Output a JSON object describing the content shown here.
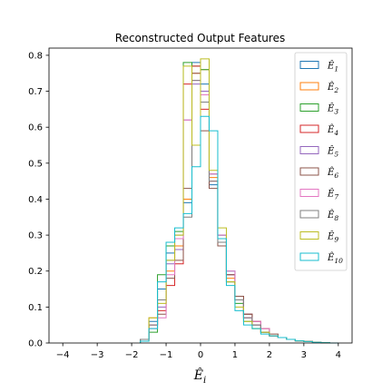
{
  "chart_data": {
    "type": "histogram-step",
    "title": "Reconstructed Output Features",
    "xlabel": "Ê_i",
    "ylabel": "",
    "xlim": [
      -4.4,
      4.4
    ],
    "ylim": [
      0,
      0.82
    ],
    "xticks": [
      -4,
      -3,
      -2,
      -1,
      0,
      1,
      2,
      3,
      4
    ],
    "yticks": [
      0.0,
      0.1,
      0.2,
      0.3,
      0.4,
      0.5,
      0.6,
      0.7,
      0.8
    ],
    "legend_position": "top-right",
    "grid": false,
    "bin_edges": [
      -1.75,
      -1.5,
      -1.25,
      -1.0,
      -0.75,
      -0.5,
      -0.25,
      0.0,
      0.25,
      0.5,
      0.75,
      1.0,
      1.25,
      1.5,
      1.75,
      2.0,
      2.25,
      2.5,
      2.75,
      3.0,
      3.25,
      3.5,
      3.75,
      4.0
    ],
    "series": [
      {
        "name": "Ê1",
        "sub": "1",
        "color": "#1f77b4",
        "values": [
          0.01,
          0.06,
          0.15,
          0.25,
          0.29,
          0.39,
          0.78,
          0.72,
          0.44,
          0.3,
          0.2,
          0.12,
          0.08,
          0.05,
          0.03,
          0.02,
          0.015,
          0.01,
          0.006,
          0.004,
          0.002,
          0.001,
          0.0
        ]
      },
      {
        "name": "Ê2",
        "sub": "2",
        "color": "#ff7f0e",
        "values": [
          0.01,
          0.07,
          0.12,
          0.2,
          0.27,
          0.4,
          0.75,
          0.76,
          0.46,
          0.29,
          0.18,
          0.12,
          0.07,
          0.05,
          0.03,
          0.02,
          0.015,
          0.01,
          0.006,
          0.004,
          0.002,
          0.001,
          0.0
        ]
      },
      {
        "name": "Ê3",
        "sub": "3",
        "color": "#2ca02c",
        "values": [
          0.005,
          0.03,
          0.19,
          0.27,
          0.31,
          0.78,
          0.77,
          0.76,
          0.47,
          0.3,
          0.17,
          0.11,
          0.06,
          0.04,
          0.03,
          0.02,
          0.015,
          0.01,
          0.006,
          0.004,
          0.002,
          0.001,
          0.0
        ]
      },
      {
        "name": "Ê4",
        "sub": "4",
        "color": "#d62728",
        "values": [
          0.01,
          0.05,
          0.09,
          0.16,
          0.22,
          0.72,
          0.77,
          0.65,
          0.45,
          0.29,
          0.19,
          0.13,
          0.08,
          0.06,
          0.04,
          0.02,
          0.015,
          0.01,
          0.006,
          0.004,
          0.002,
          0.001,
          0.0
        ]
      },
      {
        "name": "Ê5",
        "sub": "5",
        "color": "#9467bd",
        "values": [
          0.01,
          0.04,
          0.1,
          0.22,
          0.26,
          0.62,
          0.72,
          0.7,
          0.47,
          0.3,
          0.19,
          0.12,
          0.07,
          0.05,
          0.03,
          0.02,
          0.015,
          0.01,
          0.006,
          0.004,
          0.002,
          0.001,
          0.0
        ]
      },
      {
        "name": "Ê6",
        "sub": "6",
        "color": "#8c564b",
        "values": [
          0.01,
          0.05,
          0.08,
          0.18,
          0.23,
          0.43,
          0.75,
          0.59,
          0.43,
          0.27,
          0.19,
          0.13,
          0.08,
          0.06,
          0.04,
          0.025,
          0.015,
          0.01,
          0.006,
          0.004,
          0.002,
          0.001,
          0.0
        ]
      },
      {
        "name": "Ê7",
        "sub": "7",
        "color": "#e377c2",
        "values": [
          0.005,
          0.05,
          0.07,
          0.19,
          0.29,
          0.62,
          0.73,
          0.69,
          0.47,
          0.3,
          0.2,
          0.12,
          0.07,
          0.06,
          0.04,
          0.02,
          0.015,
          0.01,
          0.006,
          0.004,
          0.002,
          0.001,
          0.0
        ]
      },
      {
        "name": "Ê8",
        "sub": "8",
        "color": "#7f7f7f",
        "values": [
          0.01,
          0.05,
          0.12,
          0.23,
          0.3,
          0.35,
          0.73,
          0.67,
          0.45,
          0.28,
          0.17,
          0.12,
          0.07,
          0.05,
          0.03,
          0.02,
          0.015,
          0.01,
          0.006,
          0.004,
          0.002,
          0.001,
          0.0
        ]
      },
      {
        "name": "Ê9",
        "sub": "9",
        "color": "#bcbd22",
        "values": [
          0.005,
          0.07,
          0.11,
          0.23,
          0.3,
          0.77,
          0.55,
          0.79,
          0.48,
          0.32,
          0.17,
          0.1,
          0.06,
          0.04,
          0.03,
          0.02,
          0.015,
          0.01,
          0.006,
          0.004,
          0.002,
          0.001,
          0.0
        ]
      },
      {
        "name": "Ê10",
        "sub": "10",
        "color": "#17becf",
        "values": [
          0.005,
          0.04,
          0.17,
          0.28,
          0.32,
          0.36,
          0.49,
          0.63,
          0.59,
          0.29,
          0.16,
          0.09,
          0.05,
          0.04,
          0.025,
          0.02,
          0.015,
          0.01,
          0.006,
          0.004,
          0.002,
          0.001,
          0.0
        ]
      }
    ]
  }
}
